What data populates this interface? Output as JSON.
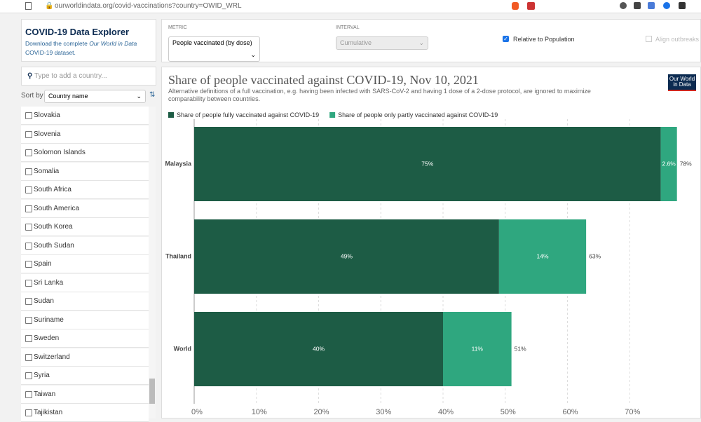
{
  "browser": {
    "url": "ourworldindata.org/covid-vaccinations?country=OWID_WRL"
  },
  "sidebar": {
    "title": "COVID-19 Data Explorer",
    "description_prefix": "Download the complete ",
    "description_link": "Our World in Data",
    "description_suffix": " COVID-19 dataset.",
    "search_placeholder": "Type to add a country...",
    "sort_label": "Sort by",
    "sort_value": "Country name",
    "countries": [
      "Slovakia",
      "Slovenia",
      "Solomon Islands",
      "Somalia",
      "South Africa",
      "South America",
      "South Korea",
      "South Sudan",
      "Spain",
      "Sri Lanka",
      "Sudan",
      "Suriname",
      "Sweden",
      "Switzerland",
      "Syria",
      "Taiwan",
      "Tajikistan"
    ]
  },
  "controls": {
    "metric_label": "METRIC",
    "metric_value": "People vaccinated (by dose)",
    "interval_label": "INTERVAL",
    "interval_value": "Cumulative",
    "relative_label": "Relative to Population",
    "align_label": "Align outbreaks"
  },
  "logo": [
    "Our World",
    "in Data"
  ],
  "chart_data": {
    "type": "stacked-bar-horizontal",
    "title": "Share of people vaccinated against COVID-19, Nov 10, 2021",
    "subtitle": "Alternative definitions of a full vaccination, e.g. having been infected with SARS-CoV-2 and having 1 dose of a 2-dose protocol, are ignored to maximize comparability between countries.",
    "categories": [
      "Malaysia",
      "Thailand",
      "World"
    ],
    "series": [
      {
        "name": "Share of people fully vaccinated against COVID-19",
        "color": "#1d5c45",
        "values": [
          75,
          49,
          40
        ],
        "value_labels": [
          "75%",
          "49%",
          "40%"
        ]
      },
      {
        "name": "Share of people only partly vaccinated against COVID-19",
        "color": "#2fa77f",
        "values": [
          2.6,
          14,
          11
        ],
        "value_labels": [
          "2.6%",
          "14%",
          "11%"
        ]
      }
    ],
    "totals": [
      78,
      63,
      51
    ],
    "total_labels": [
      "78%",
      "63%",
      "51%"
    ],
    "xlim": [
      0,
      80
    ],
    "xticks": [
      {
        "value": 0,
        "label": "0%"
      },
      {
        "value": 10,
        "label": "10%"
      },
      {
        "value": 20,
        "label": "20%"
      },
      {
        "value": 30,
        "label": "30%"
      },
      {
        "value": 40,
        "label": "40%"
      },
      {
        "value": 50,
        "label": "50%"
      },
      {
        "value": 60,
        "label": "60%"
      },
      {
        "value": 70,
        "label": "70%"
      }
    ],
    "grid": true
  }
}
